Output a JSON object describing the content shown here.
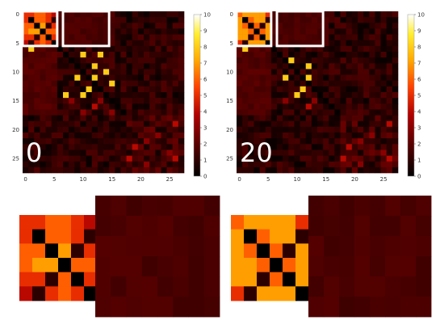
{
  "chart_data": [
    {
      "type": "heatmap",
      "title": "",
      "xlabel": "",
      "ylabel": "",
      "panel_label": "0",
      "n": 28,
      "xlim": [
        0,
        27
      ],
      "ylim": [
        0,
        27
      ],
      "x_ticks": [
        "0",
        "5",
        "10",
        "15",
        "20",
        "25"
      ],
      "y_ticks": [
        "0",
        "5",
        "10",
        "15",
        "20",
        "25"
      ],
      "colorbar": {
        "min": 0,
        "max": 10,
        "ticks": [
          "0",
          "1",
          "2",
          "3",
          "4",
          "5",
          "6",
          "7",
          "8",
          "9",
          "10"
        ],
        "colormap": "hot"
      },
      "highlight_boxes": [
        {
          "rows": [
            0,
            5
          ],
          "cols": [
            0,
            5
          ]
        },
        {
          "rows": [
            0,
            5
          ],
          "cols": [
            7,
            14
          ]
        }
      ],
      "cells": [
        [
          0,
          0,
          5
        ],
        [
          0,
          1,
          5
        ],
        [
          0,
          2,
          6
        ],
        [
          0,
          3,
          6
        ],
        [
          0,
          4,
          5
        ],
        [
          0,
          5,
          4
        ],
        [
          1,
          0,
          5
        ],
        [
          1,
          1,
          0
        ],
        [
          1,
          2,
          6
        ],
        [
          1,
          3,
          6
        ],
        [
          1,
          4,
          5
        ],
        [
          1,
          5,
          1
        ],
        [
          2,
          0,
          6
        ],
        [
          2,
          1,
          6
        ],
        [
          2,
          2,
          0
        ],
        [
          2,
          3,
          7
        ],
        [
          2,
          4,
          1
        ],
        [
          2,
          5,
          5
        ],
        [
          3,
          0,
          6
        ],
        [
          3,
          1,
          7
        ],
        [
          3,
          2,
          7
        ],
        [
          3,
          3,
          0
        ],
        [
          3,
          4,
          6
        ],
        [
          3,
          5,
          6
        ],
        [
          4,
          0,
          5
        ],
        [
          4,
          1,
          5
        ],
        [
          4,
          2,
          1
        ],
        [
          4,
          3,
          6
        ],
        [
          4,
          4,
          0
        ],
        [
          4,
          5,
          5
        ],
        [
          5,
          0,
          4
        ],
        [
          5,
          1,
          1
        ],
        [
          5,
          2,
          5
        ],
        [
          5,
          3,
          6
        ],
        [
          5,
          4,
          5
        ],
        [
          5,
          5,
          0
        ],
        [
          6,
          1,
          8
        ],
        [
          7,
          10,
          8
        ],
        [
          7,
          13,
          8
        ],
        [
          9,
          12,
          8
        ],
        [
          10,
          14,
          8
        ],
        [
          11,
          9,
          8
        ],
        [
          11,
          12,
          8
        ],
        [
          12,
          15,
          8
        ],
        [
          13,
          11,
          8
        ],
        [
          14,
          7,
          8
        ],
        [
          14,
          10,
          8
        ],
        [
          15,
          8,
          3
        ],
        [
          15,
          13,
          3
        ],
        [
          16,
          12,
          4
        ],
        [
          17,
          10,
          3
        ],
        [
          17,
          15,
          3
        ],
        [
          19,
          26,
          4
        ],
        [
          21,
          23,
          3
        ],
        [
          22,
          21,
          3
        ],
        [
          23,
          19,
          4
        ],
        [
          24,
          25,
          3
        ],
        [
          25,
          18,
          4
        ],
        [
          25,
          26,
          4
        ],
        [
          26,
          21,
          3
        ]
      ]
    },
    {
      "type": "heatmap",
      "title": "",
      "xlabel": "",
      "ylabel": "",
      "panel_label": "20",
      "n": 28,
      "xlim": [
        0,
        27
      ],
      "ylim": [
        0,
        27
      ],
      "x_ticks": [
        "0",
        "5",
        "10",
        "15",
        "20",
        "25"
      ],
      "y_ticks": [
        "0",
        "5",
        "10",
        "15",
        "20",
        "25"
      ],
      "colorbar": {
        "min": 0,
        "max": 10,
        "ticks": [
          "0",
          "1",
          "2",
          "3",
          "4",
          "5",
          "6",
          "7",
          "8",
          "9",
          "10"
        ],
        "colormap": "hot"
      },
      "highlight_boxes": [
        {
          "rows": [
            0,
            5
          ],
          "cols": [
            0,
            5
          ]
        },
        {
          "rows": [
            0,
            5
          ],
          "cols": [
            7,
            14
          ]
        }
      ],
      "cells": [
        [
          0,
          0,
          6
        ],
        [
          0,
          1,
          7
        ],
        [
          0,
          2,
          7
        ],
        [
          0,
          3,
          7
        ],
        [
          0,
          4,
          7
        ],
        [
          0,
          5,
          5
        ],
        [
          1,
          0,
          7
        ],
        [
          1,
          1,
          0
        ],
        [
          1,
          2,
          6
        ],
        [
          1,
          3,
          7
        ],
        [
          1,
          4,
          7
        ],
        [
          1,
          5,
          1
        ],
        [
          2,
          0,
          7
        ],
        [
          2,
          1,
          6
        ],
        [
          2,
          2,
          0
        ],
        [
          2,
          3,
          6
        ],
        [
          2,
          4,
          1
        ],
        [
          2,
          5,
          7
        ],
        [
          3,
          0,
          7
        ],
        [
          3,
          1,
          7
        ],
        [
          3,
          2,
          6
        ],
        [
          3,
          3,
          0
        ],
        [
          3,
          4,
          6
        ],
        [
          3,
          5,
          7
        ],
        [
          4,
          0,
          7
        ],
        [
          4,
          1,
          7
        ],
        [
          4,
          2,
          1
        ],
        [
          4,
          3,
          6
        ],
        [
          4,
          4,
          0
        ],
        [
          4,
          5,
          7
        ],
        [
          5,
          0,
          5
        ],
        [
          5,
          1,
          1
        ],
        [
          5,
          2,
          7
        ],
        [
          5,
          3,
          7
        ],
        [
          5,
          4,
          7
        ],
        [
          5,
          5,
          0
        ],
        [
          6,
          1,
          8
        ],
        [
          8,
          9,
          8
        ],
        [
          9,
          12,
          8
        ],
        [
          11,
          8,
          8
        ],
        [
          11,
          12,
          8
        ],
        [
          13,
          11,
          8
        ],
        [
          14,
          10,
          8
        ],
        [
          15,
          8,
          3
        ],
        [
          15,
          13,
          3
        ],
        [
          16,
          12,
          4
        ],
        [
          19,
          26,
          4
        ],
        [
          21,
          23,
          3
        ],
        [
          22,
          21,
          3
        ],
        [
          23,
          19,
          4
        ],
        [
          24,
          25,
          3
        ],
        [
          25,
          18,
          4
        ],
        [
          25,
          26,
          4
        ],
        [
          26,
          21,
          3
        ]
      ]
    }
  ]
}
